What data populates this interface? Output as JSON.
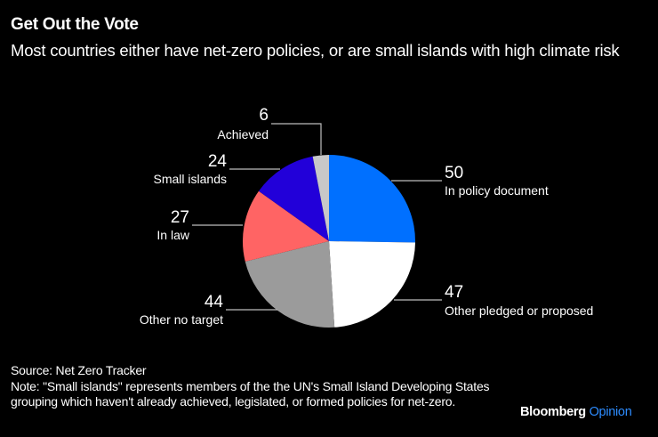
{
  "header": {
    "title": "Get Out the Vote",
    "subtitle": "Most countries either have net-zero policies, or are small islands with high climate risk"
  },
  "chart_data": {
    "type": "pie",
    "title": "Get Out the Vote",
    "subtitle": "Most countries either have net-zero policies, or are small islands with high climate risk",
    "start_angle": "12 o'clock",
    "direction": "clockwise",
    "slices": [
      {
        "label": "In policy document",
        "value": 50,
        "color": "#0070ff"
      },
      {
        "label": "Other pledged or proposed",
        "value": 47,
        "color": "#ffffff"
      },
      {
        "label": "Other no target",
        "value": 44,
        "color": "#9b9b9b"
      },
      {
        "label": "In law",
        "value": 27,
        "color": "#ff6464"
      },
      {
        "label": "Small islands",
        "value": 24,
        "color": "#2200d9"
      },
      {
        "label": "Achieved",
        "value": 6,
        "color": "#c8c8c8"
      }
    ]
  },
  "footer": {
    "source": "Source: Net Zero Tracker",
    "note": "Note: \"Small islands\" represents members of the the UN's Small Island Developing States grouping which haven't already achieved, legislated, or formed policies for net-zero."
  },
  "brand": {
    "name": "Bloomberg",
    "section": "Opinion"
  }
}
